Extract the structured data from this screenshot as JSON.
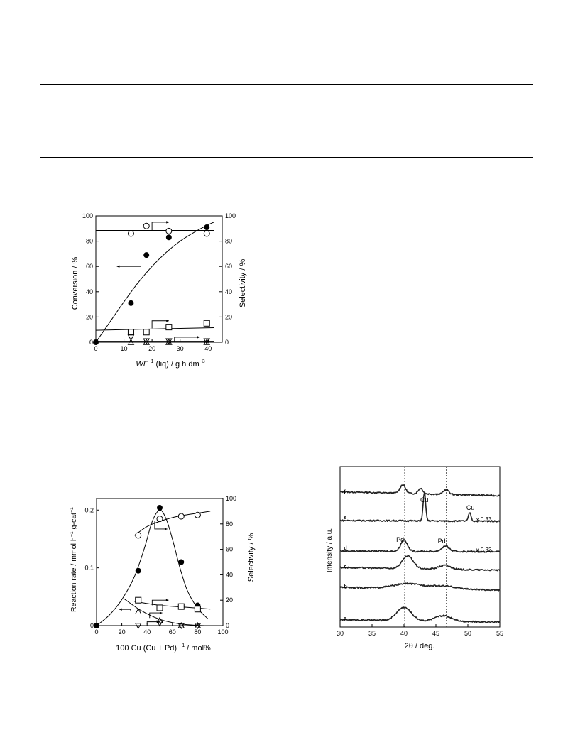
{
  "table_rules": [
    "top",
    "group",
    "header",
    "bottom"
  ],
  "chart_data": [
    {
      "id": "fig-conversion-wf",
      "type": "scatter",
      "title": "",
      "xlabel_main": "WF",
      "xlabel_sup": "−1",
      "xlabel_rest": " (liq) / g h dm",
      "xlabel_unit_sup": "−3",
      "ylabel": "Conversion / %",
      "y2label": "Selectivity / %",
      "xlim": [
        0,
        45
      ],
      "ylim": [
        0,
        100
      ],
      "y2lim": [
        0,
        100
      ],
      "xticks": [
        "0",
        "10",
        "20",
        "30",
        "40"
      ],
      "yticks": [
        "0",
        "20",
        "40",
        "60",
        "80",
        "100"
      ],
      "y2ticks": [
        "0",
        "20",
        "40",
        "60",
        "80",
        "100"
      ],
      "series": [
        {
          "marker": "filled-circle",
          "axis": "left",
          "x": [
            0,
            12.5,
            18,
            26,
            39.5
          ],
          "y": [
            0,
            31,
            69,
            83,
            91
          ]
        },
        {
          "marker": "open-circle",
          "axis": "right",
          "x": [
            12.5,
            18,
            26,
            39.5
          ],
          "y": [
            86,
            92,
            88,
            86
          ]
        },
        {
          "marker": "open-square",
          "axis": "right",
          "x": [
            12.5,
            18,
            26,
            39.5
          ],
          "y": [
            8,
            8,
            12,
            15
          ]
        },
        {
          "marker": "open-triangle-down",
          "axis": "right",
          "x": [
            12.5,
            18,
            26,
            39.5
          ],
          "y": [
            4,
            1,
            1,
            1
          ]
        },
        {
          "marker": "open-triangle-up",
          "axis": "right",
          "x": [
            12.5,
            18,
            26,
            39.5
          ],
          "y": [
            0,
            0,
            0,
            0
          ]
        }
      ],
      "curves": [
        {
          "axis": "left",
          "x": [
            0,
            5,
            10,
            15,
            20,
            25,
            30,
            35,
            40,
            42
          ],
          "y": [
            0,
            16,
            32,
            47,
            60,
            71,
            80,
            87,
            93,
            95
          ]
        },
        {
          "axis": "right",
          "x": [
            0,
            42
          ],
          "y": [
            88.5,
            88.5
          ]
        },
        {
          "axis": "right",
          "x": [
            0,
            42
          ],
          "y": [
            9.5,
            11.5
          ]
        },
        {
          "axis": "right",
          "x": [
            0,
            42
          ],
          "y": [
            0.8,
            0.8
          ]
        }
      ]
    },
    {
      "id": "fig-rate-cu",
      "type": "scatter",
      "title": "",
      "xlabel": "100 Cu (Cu + Pd) ",
      "xlabel_sup": "−1",
      "xlabel_rest": " / mol%",
      "ylabel": "Reaction rate / mmol h",
      "ylabel_sup1": "−1",
      "ylabel_mid": " g-cat",
      "ylabel_sup2": "−1",
      "y2label": "Selectivity / %",
      "xlim": [
        0,
        100
      ],
      "ylim": [
        0,
        0.22
      ],
      "y2lim": [
        0,
        100
      ],
      "xticks": [
        "0",
        "20",
        "40",
        "60",
        "80",
        "100"
      ],
      "yticks": [
        "0",
        "0.1",
        "0.2"
      ],
      "y2ticks": [
        "0",
        "20",
        "40",
        "60",
        "80",
        "100"
      ],
      "series": [
        {
          "marker": "filled-circle",
          "axis": "left",
          "x": [
            0,
            33,
            50,
            67,
            80
          ],
          "y": [
            0,
            0.095,
            0.204,
            0.11,
            0.035
          ]
        },
        {
          "marker": "open-circle",
          "axis": "right",
          "x": [
            33,
            50,
            67,
            80
          ],
          "y": [
            71,
            84,
            86,
            87
          ]
        },
        {
          "marker": "open-square",
          "axis": "right",
          "x": [
            33,
            50,
            67,
            80
          ],
          "y": [
            20,
            14,
            15,
            13
          ]
        },
        {
          "marker": "open-triangle-up",
          "axis": "right",
          "x": [
            33,
            50,
            67,
            80
          ],
          "y": [
            11,
            4,
            0,
            0
          ]
        },
        {
          "marker": "open-triangle-down",
          "axis": "right",
          "x": [
            33,
            50,
            67,
            80
          ],
          "y": [
            0,
            2,
            0,
            0
          ]
        }
      ],
      "curves": [
        {
          "axis": "left",
          "x": [
            0,
            10,
            20,
            30,
            38,
            44,
            50,
            55,
            60,
            66,
            72,
            80,
            88
          ],
          "y": [
            0,
            0.018,
            0.045,
            0.085,
            0.135,
            0.18,
            0.2,
            0.185,
            0.15,
            0.1,
            0.06,
            0.03,
            0.012
          ]
        },
        {
          "axis": "right",
          "x": [
            30,
            40,
            50,
            60,
            70,
            80,
            90
          ],
          "y": [
            71,
            78,
            82,
            85,
            87,
            88.5,
            90
          ]
        },
        {
          "axis": "right",
          "x": [
            30,
            50,
            70,
            90
          ],
          "y": [
            19,
            16,
            14.5,
            13
          ]
        },
        {
          "axis": "right",
          "x": [
            22,
            35,
            50,
            65,
            80,
            90
          ],
          "y": [
            21,
            12,
            5,
            1.5,
            0.2,
            0
          ]
        }
      ]
    },
    {
      "id": "fig-xrd",
      "type": "line",
      "title": "",
      "xlabel": "2θ / deg.",
      "ylabel": "Intensity / a.u.",
      "xlim": [
        30,
        55
      ],
      "xticks": [
        "30",
        "35",
        "40",
        "45",
        "50",
        "55"
      ],
      "reference_lines": [
        40.1,
        46.6
      ],
      "traces": [
        {
          "label": "f",
          "peaks": [
            [
              39.8,
              0.55,
              0.6
            ],
            [
              42.6,
              0.35,
              0.5
            ],
            [
              46.6,
              0.3,
              0.6
            ]
          ],
          "baseline": 0.25
        },
        {
          "label": "e",
          "peaks": [
            [
              43.2,
              1.8,
              0.28
            ],
            [
              50.3,
              0.55,
              0.28
            ]
          ],
          "baseline": 0.05
        },
        {
          "label": "d",
          "peaks": [
            [
              40.0,
              0.75,
              0.7
            ],
            [
              46.5,
              0.35,
              0.8
            ]
          ],
          "baseline": 0.05
        },
        {
          "label": "c",
          "peaks": [
            [
              40.6,
              0.8,
              1.2
            ],
            [
              46.4,
              0.25,
              1.3
            ]
          ],
          "baseline": 0.18
        },
        {
          "label": "b",
          "peaks": [
            [
              40.5,
              0.3,
              3.0
            ],
            [
              46.0,
              0.2,
              3.0
            ]
          ],
          "baseline": 0.18
        },
        {
          "label": "a",
          "peaks": [
            [
              40.0,
              0.85,
              1.6
            ],
            [
              46.2,
              0.35,
              1.8
            ]
          ],
          "baseline": 0.15
        }
      ],
      "annotations": [
        {
          "text": "Cu"
        },
        {
          "text": "Cu"
        },
        {
          "text": "x 0.33"
        },
        {
          "text": "Pd"
        },
        {
          "text": "Pd"
        },
        {
          "text": "x 0.33"
        }
      ]
    }
  ]
}
